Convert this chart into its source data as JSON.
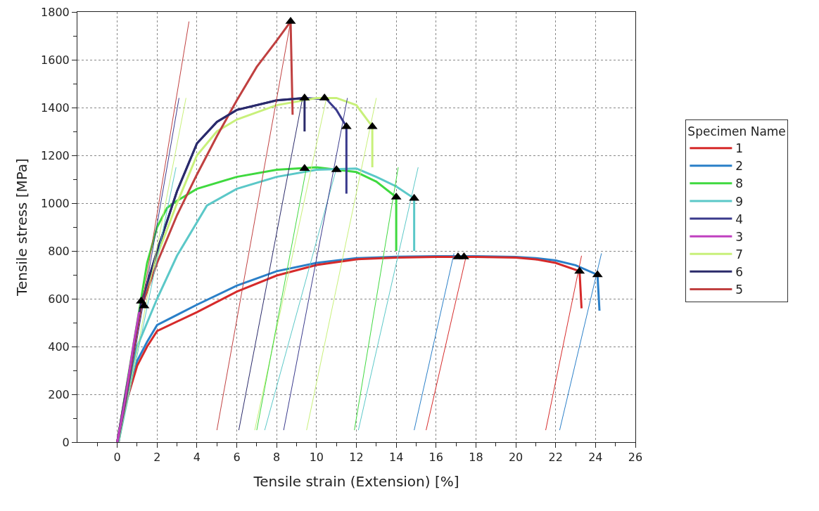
{
  "chart_data": {
    "type": "line",
    "xlabel": "Tensile strain (Extension) [%]",
    "ylabel": "Tensile stress [MPa]",
    "legend_title": "Specimen Name",
    "legend": "right",
    "grid": true,
    "line_style": "solid",
    "xlim": [
      -2,
      26
    ],
    "ylim": [
      0,
      1800
    ],
    "xticks": [
      {
        "value": -1,
        "label": null
      },
      0,
      {
        "value": 1,
        "label": null
      },
      2,
      {
        "value": 3,
        "label": null
      },
      4,
      {
        "value": 5,
        "label": null
      },
      6,
      {
        "value": 7,
        "label": null
      },
      8,
      {
        "value": 9,
        "label": null
      },
      10,
      {
        "value": 11,
        "label": null
      },
      12,
      {
        "value": 13,
        "label": null
      },
      14,
      {
        "value": 15,
        "label": null
      },
      16,
      {
        "value": 17,
        "label": null
      },
      18,
      {
        "value": 19,
        "label": null
      },
      20,
      {
        "value": 21,
        "label": null
      },
      22,
      {
        "value": 23,
        "label": null
      },
      24,
      {
        "value": 25,
        "label": null
      },
      26
    ],
    "yticks": [
      0,
      {
        "value": 100,
        "label": null
      },
      200,
      {
        "value": 300,
        "label": null
      },
      400,
      {
        "value": 500,
        "label": null
      },
      600,
      {
        "value": 700,
        "label": null
      },
      800,
      {
        "value": 900,
        "label": null
      },
      1000,
      {
        "value": 1100,
        "label": null
      },
      1200,
      {
        "value": 1300,
        "label": null
      },
      1400,
      {
        "value": 1500,
        "label": null
      },
      1600,
      {
        "value": 1700,
        "label": null
      },
      1800
    ],
    "series": [
      {
        "name": "1",
        "color": "#d62a2a",
        "x": [
          0,
          0.5,
          1,
          1.5,
          2,
          4,
          6,
          8,
          10,
          12,
          14,
          16,
          18,
          20,
          21,
          22,
          23.2,
          23.3
        ],
        "values": [
          0,
          180,
          320,
          400,
          465,
          544,
          630,
          697,
          741,
          765,
          772,
          775,
          775,
          772,
          765,
          750,
          715,
          560
        ]
      },
      {
        "name": "2",
        "color": "#2a7fc8",
        "x": [
          0,
          0.5,
          1,
          1.5,
          2,
          4,
          6,
          8,
          10,
          12,
          14,
          16,
          18,
          20,
          21,
          22,
          23,
          24.1,
          24.2
        ],
        "values": [
          0,
          190,
          340,
          420,
          490,
          575,
          655,
          715,
          750,
          770,
          776,
          778,
          778,
          775,
          770,
          760,
          740,
          700,
          550
        ]
      },
      {
        "name": "8",
        "color": "#3fd93f",
        "x": [
          0,
          1,
          1.5,
          2,
          2.5,
          3,
          4,
          6,
          8,
          10,
          12,
          13,
          14,
          14
        ],
        "values": [
          0,
          500,
          750,
          900,
          980,
          1010,
          1060,
          1110,
          1140,
          1150,
          1130,
          1090,
          1025,
          800
        ]
      },
      {
        "name": "9",
        "color": "#5bc8c8",
        "x": [
          0,
          1,
          2,
          3,
          4,
          4.5,
          6,
          8,
          10,
          12,
          13,
          14,
          14.9,
          14.9
        ],
        "values": [
          0,
          400,
          600,
          780,
          920,
          990,
          1060,
          1110,
          1140,
          1145,
          1110,
          1070,
          1020,
          800
        ]
      },
      {
        "name": "4",
        "color": "#3a3a8c",
        "x": [
          0,
          1.2,
          2,
          3,
          4,
          5,
          6,
          8,
          9.4,
          10.5,
          11,
          11.5,
          11.5
        ],
        "values": [
          0,
          580,
          800,
          1050,
          1250,
          1340,
          1390,
          1430,
          1440,
          1435,
          1390,
          1320,
          1040
        ]
      },
      {
        "name": "3",
        "color": "#c040c0",
        "x": [
          0,
          0.4,
          0.8,
          1.1
        ],
        "values": [
          0,
          180,
          400,
          545
        ]
      },
      {
        "name": "7",
        "color": "#c8f07a",
        "x": [
          0,
          1.2,
          2,
          3,
          4,
          5,
          6,
          8,
          10,
          11,
          12,
          12.8,
          12.8
        ],
        "values": [
          0,
          580,
          780,
          1000,
          1200,
          1300,
          1350,
          1410,
          1440,
          1440,
          1410,
          1320,
          1150
        ]
      },
      {
        "name": "6",
        "color": "#2a2a6a",
        "x": [
          0,
          1.2,
          2,
          3,
          4,
          5,
          6,
          8,
          9.4,
          9.4
        ],
        "values": [
          0,
          580,
          800,
          1050,
          1250,
          1340,
          1390,
          1430,
          1440,
          1300
        ]
      },
      {
        "name": "5",
        "color": "#c04040",
        "x": [
          0,
          1.2,
          2,
          3,
          4,
          5,
          6,
          7,
          8,
          8.7,
          8.8
        ],
        "values": [
          0,
          560,
          750,
          950,
          1120,
          1280,
          1430,
          1570,
          1680,
          1760,
          1370
        ]
      },
      {
        "color": "#c04040",
        "x": [
          0.1,
          3.6
        ],
        "values": [
          0,
          1760
        ]
      },
      {
        "color": "#3a3a8c",
        "x": [
          0.1,
          3.1
        ],
        "values": [
          0,
          1440
        ]
      },
      {
        "color": "#c8f07a",
        "x": [
          0.1,
          3.45
        ],
        "values": [
          0,
          1440
        ]
      },
      {
        "color": "#5bc8c8",
        "x": [
          0.1,
          2.95
        ],
        "values": [
          0,
          1150
        ]
      },
      {
        "color": "#c04040",
        "x": [
          5.0,
          8.7
        ],
        "values": [
          50,
          1760
        ]
      },
      {
        "color": "#2a2a6a",
        "x": [
          6.1,
          9.3
        ],
        "values": [
          50,
          1440
        ]
      },
      {
        "color": "#c8f07a",
        "x": [
          6.9,
          10.5
        ],
        "values": [
          50,
          1440
        ]
      },
      {
        "color": "#3fd93f",
        "x": [
          7.0,
          9.5
        ],
        "values": [
          50,
          1150
        ]
      },
      {
        "color": "#5bc8c8",
        "x": [
          7.4,
          11.0
        ],
        "values": [
          50,
          1145
        ]
      },
      {
        "color": "#3a3a8c",
        "x": [
          8.35,
          11.55
        ],
        "values": [
          50,
          1440
        ]
      },
      {
        "color": "#c8f07a",
        "x": [
          9.5,
          13.0
        ],
        "values": [
          50,
          1440
        ]
      },
      {
        "color": "#3fd93f",
        "x": [
          11.9,
          14.1
        ],
        "values": [
          50,
          1150
        ]
      },
      {
        "color": "#5bc8c8",
        "x": [
          12.1,
          15.1
        ],
        "values": [
          50,
          1150
        ]
      },
      {
        "color": "#2a7fc8",
        "x": [
          14.9,
          16.9
        ],
        "values": [
          50,
          790
        ]
      },
      {
        "color": "#d62a2a",
        "x": [
          15.5,
          17.5
        ],
        "values": [
          50,
          775
        ]
      },
      {
        "color": "#d62a2a",
        "x": [
          21.5,
          23.3
        ],
        "values": [
          50,
          780
        ]
      },
      {
        "color": "#2a7fc8",
        "x": [
          22.2,
          24.3
        ],
        "values": [
          50,
          790
        ]
      },
      {
        "type": "scatter",
        "marker": "triangle",
        "color": "#000000",
        "x": [
          8.7,
          9.4,
          10.4,
          11.5,
          12.8,
          9.4,
          11.0,
          14.0,
          14.9,
          17.1,
          17.4,
          23.2,
          24.1,
          1.2,
          1.35
        ],
        "values": [
          1760,
          1440,
          1440,
          1320,
          1320,
          1145,
          1140,
          1025,
          1020,
          775,
          775,
          715,
          700,
          590,
          570
        ]
      }
    ]
  }
}
